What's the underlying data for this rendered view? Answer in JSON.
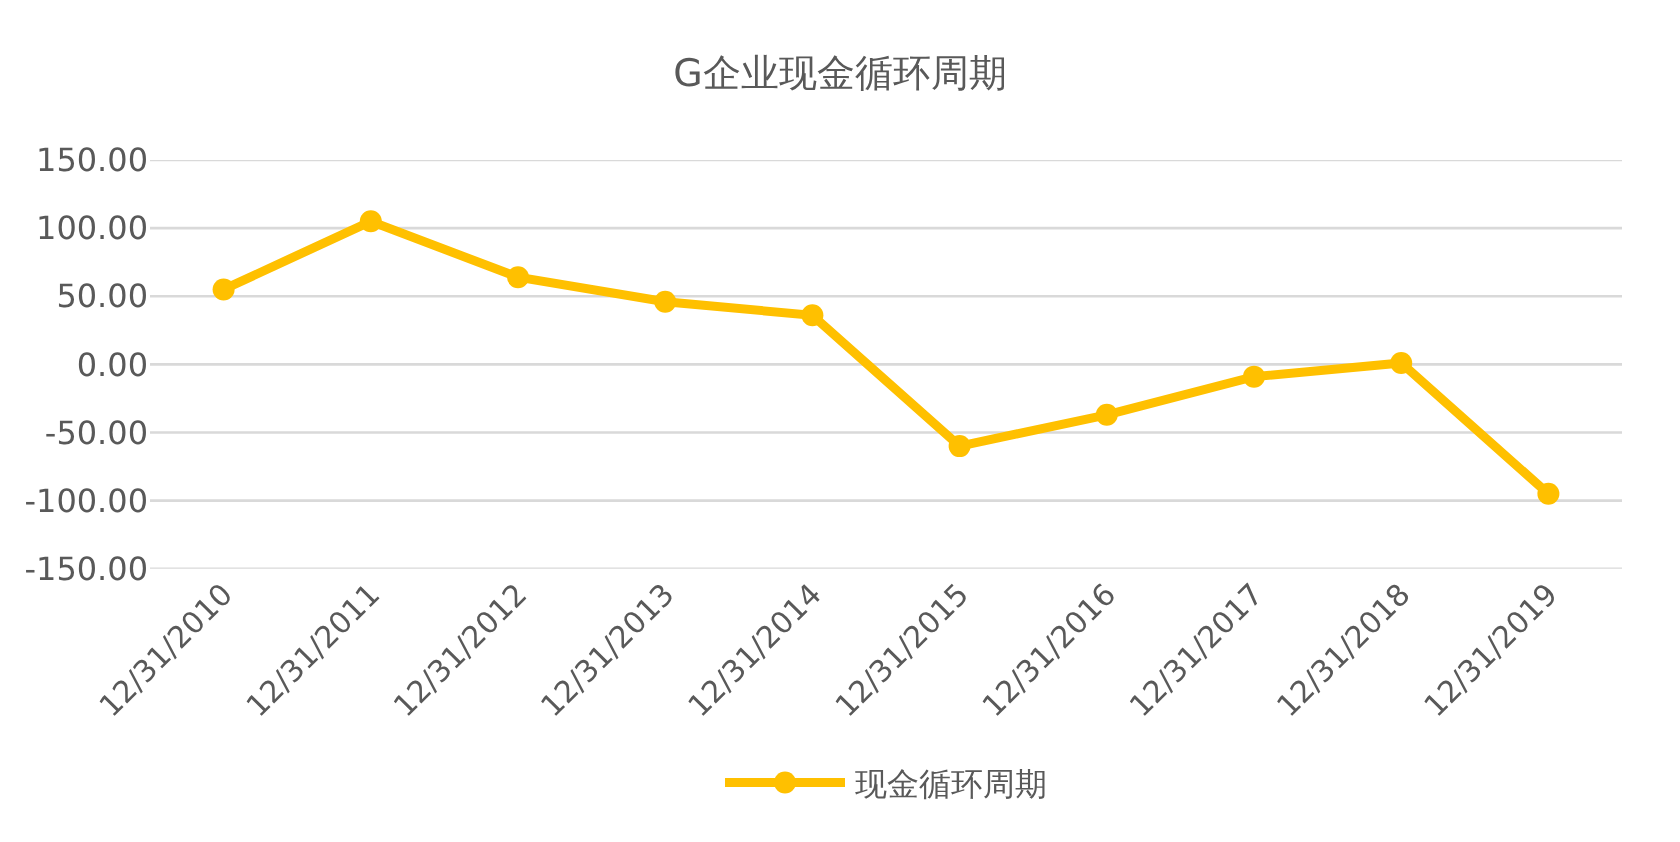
{
  "chart_data": {
    "type": "line",
    "title": "G企业现金循环周期",
    "categories": [
      "12/31/2010",
      "12/31/2011",
      "12/31/2012",
      "12/31/2013",
      "12/31/2014",
      "12/31/2015",
      "12/31/2016",
      "12/31/2017",
      "12/31/2018",
      "12/31/2019"
    ],
    "series": [
      {
        "name": "现金循环周期",
        "color": "#ffc000",
        "values": [
          55,
          105,
          64,
          46,
          36,
          -60,
          -37,
          -9,
          1,
          -95
        ]
      }
    ],
    "ylim": [
      -150,
      150
    ],
    "yticks": [
      {
        "value": 150,
        "label": "150.00"
      },
      {
        "value": 100,
        "label": "100.00"
      },
      {
        "value": 50,
        "label": "50.00"
      },
      {
        "value": 0,
        "label": "0.00"
      },
      {
        "value": -50,
        "label": "-50.00"
      },
      {
        "value": -100,
        "label": "-100.00"
      },
      {
        "value": -150,
        "label": "-150.00"
      }
    ],
    "grid": "y",
    "legend": "bottom",
    "marker": "circle",
    "line_style": "solid"
  }
}
